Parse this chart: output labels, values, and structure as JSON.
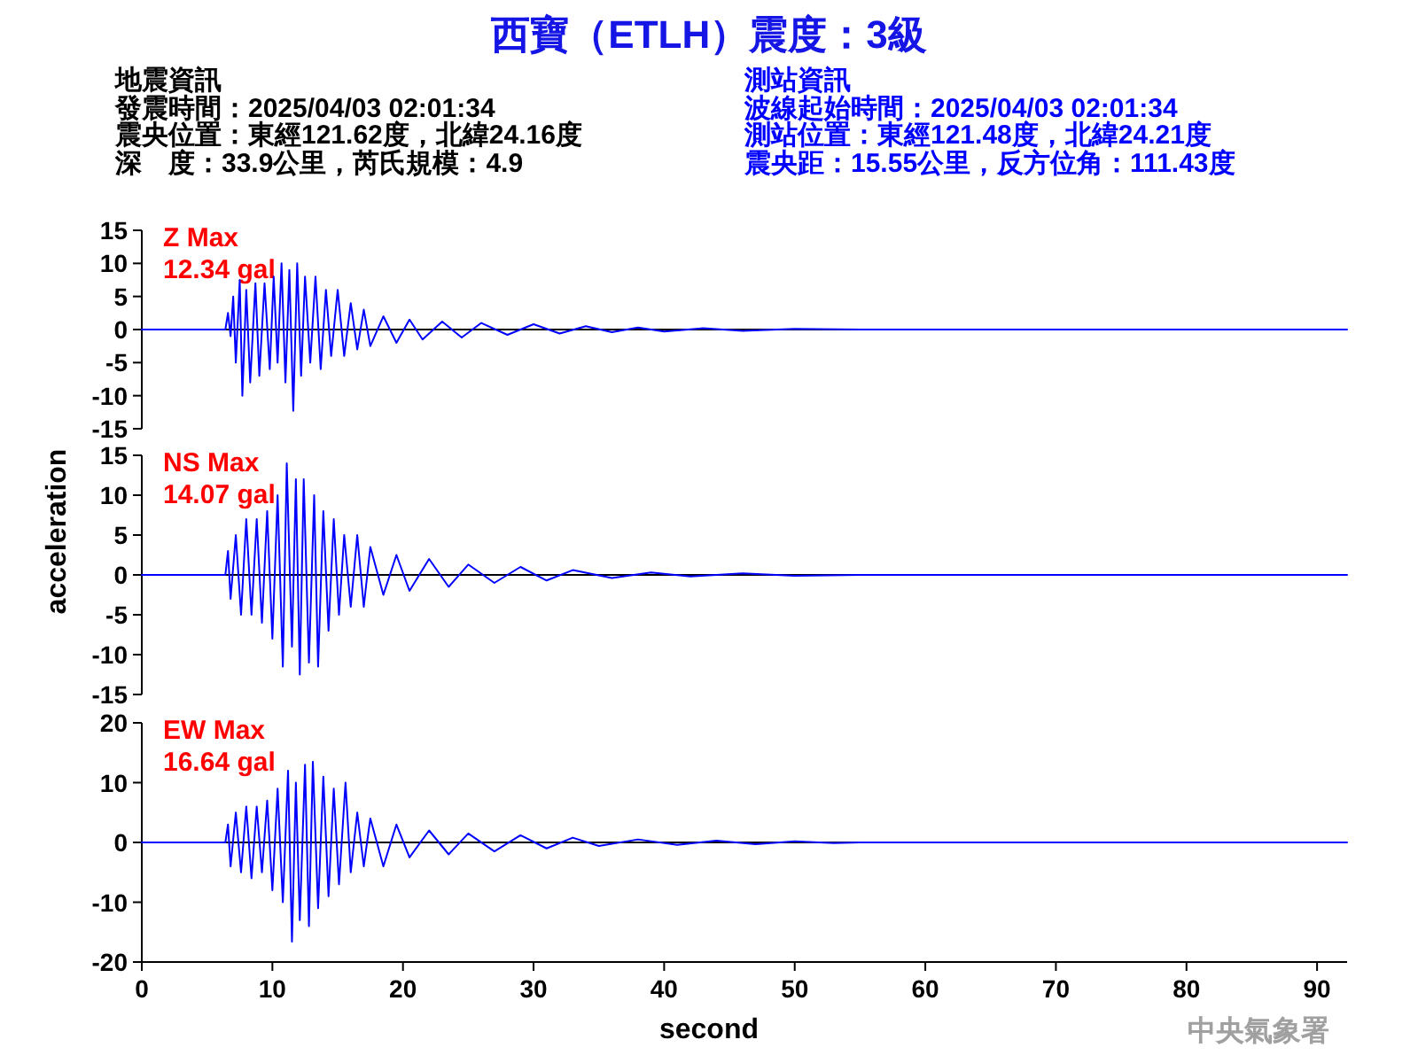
{
  "chart_data": [
    {
      "type": "line",
      "title": "西寶（ETLH）震度：3級",
      "annotations": [
        "Z Max",
        "12.34 gal",
        "地震資訊",
        "發震時間：2025/04/03 02:01:34",
        "震央位置：東經121.62度，北緯24.16度",
        "深　度：33.9公里，芮氏規模：4.9",
        "測站資訊",
        "波線起始時間：2025/04/03 02:01:34",
        "測站位置：東經121.48度，北緯24.21度",
        "震央距：15.55公里，反方位角：111.43度"
      ],
      "xlim": [
        0,
        92.3
      ],
      "ylim": [
        -15,
        15
      ],
      "yticks": [
        -15,
        -10,
        -5,
        0,
        5,
        10,
        15
      ],
      "tick_labels": "y",
      "ref_lines": [
        {
          "axis": "y",
          "value": 0,
          "color": "#000000"
        }
      ],
      "series": [
        {
          "color": "#0000ff",
          "x": [
            0,
            6.4,
            6.6,
            6.8,
            7.0,
            7.2,
            7.5,
            7.7,
            8.0,
            8.3,
            8.7,
            9.0,
            9.4,
            9.8,
            10.1,
            10.4,
            10.7,
            11.0,
            11.3,
            11.6,
            11.9,
            12.2,
            12.5,
            12.9,
            13.3,
            13.7,
            14.1,
            14.5,
            15.0,
            15.5,
            16.0,
            16.5,
            17.0,
            17.5,
            18.5,
            19.5,
            20.5,
            21.5,
            23,
            24.5,
            26,
            28,
            30,
            32,
            34,
            36,
            38,
            40,
            43,
            46,
            50,
            55,
            92.3
          ],
          "values": [
            0,
            0,
            2.5,
            -1,
            5,
            -5,
            7.5,
            -10,
            6,
            -8,
            7,
            -7,
            7,
            -6,
            8,
            -5,
            10,
            -8,
            9,
            -12.3,
            10,
            -7,
            8,
            -5,
            8,
            -6,
            6,
            -4,
            6,
            -4,
            4,
            -3,
            3,
            -2.5,
            2,
            -2,
            1.5,
            -1.5,
            1.2,
            -1.2,
            1,
            -0.8,
            0.8,
            -0.6,
            0.5,
            -0.4,
            0.3,
            -0.3,
            0.2,
            -0.2,
            0.1,
            0,
            0
          ]
        }
      ]
    },
    {
      "type": "line",
      "ylabel": "acceleration",
      "annotations": [
        "NS Max",
        "14.07 gal"
      ],
      "xlim": [
        0,
        92.3
      ],
      "ylim": [
        -15,
        15
      ],
      "yticks": [
        -15,
        -10,
        -5,
        0,
        5,
        10,
        15
      ],
      "tick_labels": "y",
      "ref_lines": [
        {
          "axis": "y",
          "value": 0,
          "color": "#000000"
        }
      ],
      "series": [
        {
          "color": "#0000ff",
          "x": [
            0,
            6.4,
            6.6,
            6.8,
            7.2,
            7.6,
            8.0,
            8.4,
            8.8,
            9.2,
            9.6,
            10.0,
            10.4,
            10.8,
            11.1,
            11.5,
            11.8,
            12.1,
            12.4,
            12.8,
            13.2,
            13.5,
            13.9,
            14.3,
            14.7,
            15.1,
            15.5,
            16.0,
            16.5,
            17.0,
            17.5,
            18.5,
            19.5,
            20.5,
            22,
            23.5,
            25,
            27,
            29,
            31,
            33,
            36,
            39,
            42,
            46,
            50,
            55,
            92.3
          ],
          "values": [
            0,
            0,
            3,
            -3,
            5,
            -5,
            7,
            -5,
            7,
            -6,
            8,
            -8,
            10,
            -11.5,
            14,
            -9,
            12,
            -12.5,
            12,
            -11,
            10,
            -11.5,
            8,
            -7,
            7,
            -5,
            5,
            -4,
            5,
            -4,
            3.5,
            -2.5,
            2.5,
            -2,
            2,
            -1.5,
            1.3,
            -1,
            1,
            -0.7,
            0.6,
            -0.4,
            0.3,
            -0.2,
            0.2,
            -0.1,
            0,
            0
          ]
        }
      ]
    },
    {
      "type": "line",
      "xlabel": "second",
      "annotations": [
        "EW Max",
        "16.64 gal",
        "中央氣象署"
      ],
      "xlim": [
        0,
        92.3
      ],
      "xticks": [
        0,
        10,
        20,
        30,
        40,
        50,
        60,
        70,
        80,
        90
      ],
      "ylim": [
        -20,
        20
      ],
      "yticks": [
        -20,
        -10,
        0,
        10,
        20
      ],
      "ref_lines": [
        {
          "axis": "y",
          "value": 0,
          "color": "#000000"
        }
      ],
      "series": [
        {
          "color": "#0000ff",
          "x": [
            0,
            6.4,
            6.6,
            6.8,
            7.2,
            7.6,
            8.0,
            8.4,
            8.8,
            9.2,
            9.6,
            10.0,
            10.4,
            10.8,
            11.2,
            11.5,
            11.8,
            12.1,
            12.5,
            12.8,
            13.1,
            13.5,
            13.9,
            14.3,
            14.7,
            15.1,
            15.6,
            16.0,
            16.5,
            17.0,
            17.5,
            18.5,
            19.5,
            20.5,
            22,
            23.5,
            25,
            27,
            29,
            31,
            33,
            35,
            38,
            41,
            44,
            47,
            50,
            53,
            55,
            92.3
          ],
          "values": [
            0,
            0,
            3,
            -4,
            5,
            -5,
            6,
            -6,
            6,
            -5,
            7,
            -8,
            9,
            -10,
            12,
            -16.6,
            10,
            -13,
            13,
            -14,
            13.5,
            -11,
            11,
            -9,
            9,
            -7,
            10,
            -5,
            5,
            -4,
            4,
            -4,
            3,
            -2.5,
            2,
            -2,
            1.5,
            -1.5,
            1.2,
            -1,
            0.8,
            -0.6,
            0.5,
            -0.4,
            0.3,
            -0.3,
            0.2,
            -0.1,
            0,
            0
          ]
        }
      ]
    }
  ]
}
